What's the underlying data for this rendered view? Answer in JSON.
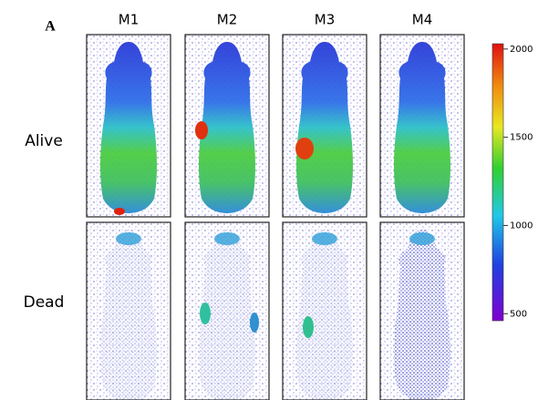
{
  "panel_label": "A",
  "columns": [
    "M1",
    "M2",
    "M3",
    "M4"
  ],
  "rows": [
    "Alive",
    "Dead"
  ],
  "colorbar": {
    "lim": [
      460,
      2030
    ],
    "ticks": [
      2000,
      1500,
      1000,
      500
    ]
  }
}
